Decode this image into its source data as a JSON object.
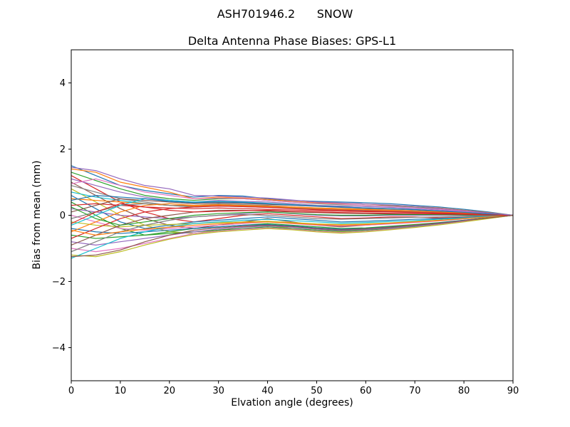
{
  "chart_data": {
    "type": "line",
    "suptitle": "ASH701946.2      SNOW",
    "title": "Delta Antenna Phase Biases: GPS-L1",
    "xlabel": "Elvation angle (degrees)",
    "ylabel": "Bias from mean (mm)",
    "xlim": [
      0,
      90
    ],
    "ylim": [
      -5,
      5
    ],
    "xticks": [
      0,
      10,
      20,
      30,
      40,
      50,
      60,
      70,
      80,
      90
    ],
    "yticks": [
      -4,
      -2,
      0,
      2,
      4
    ],
    "grid": false,
    "legend": false,
    "colors": [
      "#1f77b4",
      "#ff7f0e",
      "#2ca02c",
      "#d62728",
      "#9467bd",
      "#8c564b",
      "#e377c2",
      "#7f7f7f",
      "#bcbd22",
      "#17becf"
    ],
    "x": [
      0,
      5,
      10,
      15,
      20,
      25,
      30,
      35,
      40,
      45,
      50,
      55,
      60,
      65,
      70,
      75,
      80,
      85,
      90
    ],
    "series": [
      {
        "values": [
          1.5,
          1.2,
          0.9,
          0.75,
          0.65,
          0.55,
          0.6,
          0.58,
          0.5,
          0.45,
          0.42,
          0.4,
          0.38,
          0.35,
          0.3,
          0.25,
          0.18,
          0.1,
          0
        ]
      },
      {
        "values": [
          1.4,
          1.3,
          1.0,
          0.85,
          0.7,
          0.5,
          0.55,
          0.52,
          0.48,
          0.42,
          0.38,
          0.36,
          0.34,
          0.3,
          0.27,
          0.22,
          0.15,
          0.08,
          0
        ]
      },
      {
        "values": [
          1.3,
          1.05,
          0.8,
          0.6,
          0.5,
          0.45,
          0.5,
          0.5,
          0.45,
          0.4,
          0.35,
          0.32,
          0.3,
          0.28,
          0.24,
          0.2,
          0.13,
          0.07,
          0
        ]
      },
      {
        "values": [
          1.2,
          0.8,
          0.4,
          0.1,
          -0.1,
          -0.2,
          -0.1,
          0.0,
          0.05,
          0.0,
          -0.05,
          -0.1,
          -0.08,
          -0.05,
          -0.05,
          -0.08,
          -0.06,
          -0.03,
          0
        ]
      },
      {
        "values": [
          1.1,
          0.9,
          0.7,
          0.55,
          0.45,
          0.4,
          0.45,
          0.42,
          0.4,
          0.35,
          0.3,
          0.28,
          0.26,
          0.24,
          0.2,
          0.16,
          0.1,
          0.05,
          0
        ]
      },
      {
        "values": [
          1.0,
          0.6,
          0.2,
          -0.1,
          -0.3,
          -0.4,
          -0.3,
          -0.2,
          -0.1,
          -0.2,
          -0.3,
          -0.35,
          -0.3,
          -0.25,
          -0.2,
          -0.15,
          -0.1,
          -0.05,
          0
        ]
      },
      {
        "values": [
          0.95,
          1.1,
          0.9,
          0.7,
          0.6,
          0.5,
          0.52,
          0.5,
          0.45,
          0.4,
          0.36,
          0.33,
          0.3,
          0.27,
          0.23,
          0.18,
          0.12,
          0.06,
          0
        ]
      },
      {
        "values": [
          0.9,
          0.7,
          0.5,
          0.4,
          0.3,
          0.3,
          0.35,
          0.32,
          0.3,
          0.25,
          0.22,
          0.2,
          0.18,
          0.16,
          0.13,
          0.1,
          0.07,
          0.03,
          0
        ]
      },
      {
        "values": [
          0.8,
          0.4,
          0.0,
          -0.3,
          -0.5,
          -0.55,
          -0.45,
          -0.35,
          -0.3,
          -0.4,
          -0.45,
          -0.5,
          -0.45,
          -0.4,
          -0.35,
          -0.28,
          -0.18,
          -0.09,
          0
        ]
      },
      {
        "values": [
          0.7,
          0.55,
          0.45,
          0.35,
          0.3,
          0.25,
          0.3,
          0.28,
          0.25,
          0.22,
          0.2,
          0.18,
          0.16,
          0.14,
          0.12,
          0.09,
          0.06,
          0.03,
          0
        ]
      },
      {
        "values": [
          0.6,
          0.2,
          -0.2,
          -0.4,
          -0.3,
          -0.2,
          -0.15,
          -0.1,
          -0.05,
          -0.1,
          -0.15,
          -0.2,
          -0.18,
          -0.15,
          -0.12,
          -0.1,
          -0.07,
          -0.03,
          0
        ]
      },
      {
        "values": [
          0.5,
          0.45,
          0.4,
          0.35,
          0.3,
          0.28,
          0.3,
          0.28,
          0.26,
          0.23,
          0.2,
          0.18,
          0.16,
          0.14,
          0.11,
          0.09,
          0.06,
          0.03,
          0
        ]
      },
      {
        "values": [
          0.4,
          0.0,
          -0.4,
          -0.6,
          -0.5,
          -0.4,
          -0.35,
          -0.3,
          -0.25,
          -0.3,
          -0.35,
          -0.4,
          -0.38,
          -0.33,
          -0.28,
          -0.22,
          -0.15,
          -0.07,
          0
        ]
      },
      {
        "values": [
          0.3,
          0.35,
          0.3,
          0.25,
          0.22,
          0.2,
          0.22,
          0.2,
          0.18,
          0.16,
          0.14,
          0.12,
          0.11,
          0.1,
          0.08,
          0.06,
          0.04,
          0.02,
          0
        ]
      },
      {
        "values": [
          0.2,
          0.1,
          0.0,
          -0.05,
          -0.1,
          -0.05,
          0.0,
          0.05,
          0.1,
          0.05,
          0.0,
          -0.02,
          -0.02,
          0.0,
          0.0,
          0.0,
          0.0,
          0.0,
          0
        ]
      },
      {
        "values": [
          0.1,
          0.3,
          0.5,
          0.45,
          0.4,
          0.35,
          0.38,
          0.36,
          0.33,
          0.3,
          0.27,
          0.24,
          0.21,
          0.19,
          0.16,
          0.12,
          0.08,
          0.04,
          0
        ]
      },
      {
        "values": [
          0.0,
          -0.2,
          -0.4,
          -0.45,
          -0.4,
          -0.35,
          -0.3,
          -0.25,
          -0.2,
          -0.25,
          -0.3,
          -0.32,
          -0.3,
          -0.26,
          -0.22,
          -0.17,
          -0.11,
          -0.05,
          0
        ]
      },
      {
        "values": [
          -0.1,
          0.1,
          0.3,
          0.35,
          0.3,
          0.25,
          0.28,
          0.26,
          0.24,
          0.21,
          0.18,
          0.16,
          0.14,
          0.12,
          0.1,
          0.08,
          0.05,
          0.02,
          0
        ]
      },
      {
        "values": [
          -0.2,
          -0.3,
          -0.35,
          -0.3,
          -0.28,
          -0.25,
          -0.22,
          -0.2,
          -0.18,
          -0.22,
          -0.26,
          -0.28,
          -0.26,
          -0.23,
          -0.19,
          -0.15,
          -0.1,
          -0.05,
          0
        ]
      },
      {
        "values": [
          -0.3,
          0.0,
          0.3,
          0.5,
          0.45,
          0.4,
          0.42,
          0.4,
          0.36,
          0.32,
          0.28,
          0.25,
          0.22,
          0.2,
          0.17,
          0.13,
          0.09,
          0.04,
          0
        ]
      },
      {
        "values": [
          -0.4,
          -0.5,
          -0.55,
          -0.5,
          -0.45,
          -0.4,
          -0.35,
          -0.3,
          -0.28,
          -0.32,
          -0.38,
          -0.42,
          -0.4,
          -0.35,
          -0.3,
          -0.23,
          -0.15,
          -0.08,
          0
        ]
      },
      {
        "values": [
          -0.5,
          -0.2,
          0.1,
          0.3,
          0.35,
          0.3,
          0.32,
          0.3,
          0.28,
          0.25,
          0.22,
          0.2,
          0.18,
          0.15,
          0.13,
          0.1,
          0.07,
          0.03,
          0
        ]
      },
      {
        "values": [
          -0.6,
          -0.7,
          -0.65,
          -0.6,
          -0.55,
          -0.5,
          -0.45,
          -0.4,
          -0.35,
          -0.4,
          -0.45,
          -0.48,
          -0.45,
          -0.4,
          -0.34,
          -0.27,
          -0.18,
          -0.09,
          0
        ]
      },
      {
        "values": [
          -0.7,
          -0.4,
          -0.1,
          0.1,
          0.2,
          0.25,
          0.28,
          0.26,
          0.24,
          0.2,
          0.17,
          0.15,
          0.13,
          0.11,
          0.09,
          0.07,
          0.05,
          0.02,
          0
        ]
      },
      {
        "values": [
          -0.8,
          -0.9,
          -0.8,
          -0.7,
          -0.6,
          -0.5,
          -0.42,
          -0.36,
          -0.32,
          -0.36,
          -0.42,
          -0.46,
          -0.43,
          -0.38,
          -0.32,
          -0.25,
          -0.17,
          -0.08,
          0
        ]
      },
      {
        "values": [
          -0.9,
          -0.6,
          -0.3,
          -0.1,
          0.0,
          0.1,
          0.15,
          0.15,
          0.13,
          0.1,
          0.08,
          0.06,
          0.05,
          0.04,
          0.03,
          0.02,
          0.01,
          0.01,
          0
        ]
      },
      {
        "values": [
          -1.0,
          -1.1,
          -1.0,
          -0.85,
          -0.7,
          -0.55,
          -0.48,
          -0.42,
          -0.38,
          -0.42,
          -0.48,
          -0.52,
          -0.48,
          -0.42,
          -0.36,
          -0.28,
          -0.19,
          -0.09,
          0
        ]
      },
      {
        "values": [
          -1.1,
          -0.8,
          -0.5,
          -0.3,
          -0.15,
          -0.05,
          0.0,
          0.02,
          0.0,
          -0.05,
          -0.1,
          -0.12,
          -0.1,
          -0.08,
          -0.06,
          -0.05,
          -0.03,
          -0.01,
          0
        ]
      },
      {
        "values": [
          -1.2,
          -1.25,
          -1.1,
          -0.9,
          -0.72,
          -0.58,
          -0.5,
          -0.45,
          -0.4,
          -0.44,
          -0.5,
          -0.54,
          -0.5,
          -0.44,
          -0.37,
          -0.29,
          -0.2,
          -0.1,
          0
        ]
      },
      {
        "values": [
          -1.3,
          -1.0,
          -0.7,
          -0.5,
          -0.35,
          -0.25,
          -0.2,
          -0.15,
          -0.12,
          -0.16,
          -0.2,
          -0.24,
          -0.22,
          -0.19,
          -0.16,
          -0.12,
          -0.08,
          -0.04,
          0
        ]
      },
      {
        "values": [
          0.45,
          0.6,
          0.55,
          0.5,
          0.42,
          0.38,
          0.4,
          0.38,
          0.35,
          0.31,
          0.28,
          0.25,
          0.22,
          0.2,
          0.17,
          0.13,
          0.09,
          0.04,
          0
        ]
      },
      {
        "values": [
          -0.45,
          -0.6,
          -0.5,
          -0.42,
          -0.36,
          -0.3,
          -0.26,
          -0.22,
          -0.2,
          -0.24,
          -0.28,
          -0.3,
          -0.28,
          -0.24,
          -0.2,
          -0.16,
          -0.1,
          -0.05,
          0
        ]
      },
      {
        "values": [
          0.25,
          -0.1,
          -0.3,
          -0.2,
          -0.1,
          0.0,
          0.05,
          0.08,
          0.1,
          0.06,
          0.02,
          0.0,
          0.0,
          0.02,
          0.02,
          0.02,
          0.01,
          0.01,
          0
        ]
      },
      {
        "values": [
          -0.25,
          0.1,
          0.35,
          0.25,
          0.15,
          0.1,
          0.12,
          0.14,
          0.15,
          0.12,
          0.1,
          0.08,
          0.07,
          0.06,
          0.05,
          0.04,
          0.03,
          0.01,
          0
        ]
      },
      {
        "values": [
          1.45,
          1.35,
          1.1,
          0.9,
          0.8,
          0.6,
          0.58,
          0.55,
          0.52,
          0.46,
          0.4,
          0.37,
          0.34,
          0.31,
          0.27,
          0.21,
          0.14,
          0.07,
          0
        ]
      },
      {
        "values": [
          -1.25,
          -1.2,
          -1.05,
          -0.8,
          -0.6,
          -0.45,
          -0.38,
          -0.33,
          -0.3,
          -0.34,
          -0.4,
          -0.44,
          -0.41,
          -0.36,
          -0.3,
          -0.24,
          -0.16,
          -0.08,
          0
        ]
      }
    ]
  }
}
